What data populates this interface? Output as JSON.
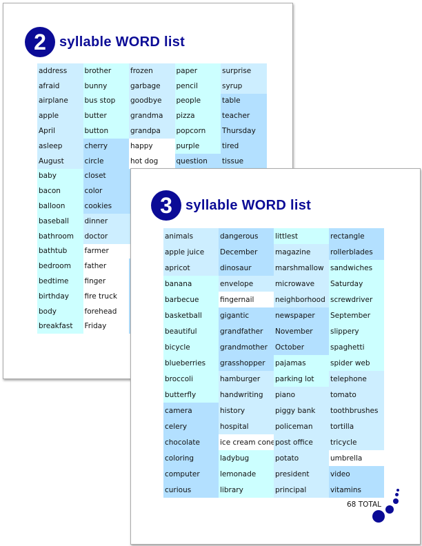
{
  "back_page": {
    "number": "2",
    "title": "syllable WORD list",
    "columns": [
      {
        "words": [
          "address",
          "afraid",
          "airplane",
          "apple",
          "April",
          "asleep",
          "August",
          "baby",
          "bacon",
          "balloon",
          "baseball",
          "bathroom",
          "bathtub",
          "bedroom",
          "bedtime",
          "birthday",
          "body",
          "breakfast"
        ],
        "colors": [
          "l",
          "l",
          "l",
          "l",
          "l",
          "l",
          "l",
          "c",
          "c",
          "c",
          "c",
          "c",
          "c",
          "c",
          "c",
          "c",
          "c",
          "c"
        ]
      },
      {
        "words": [
          "brother",
          "bunny",
          "bus stop",
          "butter",
          "button",
          "cherry",
          "circle",
          "closet",
          "color",
          "cookies",
          "dinner",
          "doctor",
          "farmer",
          "father",
          "finger",
          "fire truck",
          "forehead",
          "Friday"
        ],
        "colors": [
          "c",
          "c",
          "c",
          "c",
          "c",
          "m",
          "m",
          "m",
          "m",
          "m",
          "l",
          "l",
          "w",
          "w",
          "w",
          "w",
          "w",
          "w"
        ]
      },
      {
        "words": [
          "frozen",
          "garbage",
          "goodbye",
          "grandma",
          "grandpa",
          "happy",
          "hot dog",
          "",
          "",
          "",
          "",
          "",
          "",
          "",
          "",
          "",
          "",
          ""
        ],
        "colors": [
          "l",
          "l",
          "l",
          "l",
          "l",
          "w",
          "w",
          "m",
          "m",
          "m",
          "l",
          "l",
          "w",
          "m",
          "m",
          "m",
          "m",
          "m"
        ]
      },
      {
        "words": [
          "paper",
          "pencil",
          "people",
          "pizza",
          "popcorn",
          "purple",
          "question"
        ],
        "colors": [
          "c",
          "c",
          "c",
          "c",
          "c",
          "c",
          "m"
        ]
      },
      {
        "words": [
          "surprise",
          "syrup",
          "table",
          "teacher",
          "Thursday",
          "tired",
          "tissue"
        ],
        "colors": [
          "l",
          "l",
          "m",
          "m",
          "m",
          "m",
          "m"
        ]
      }
    ]
  },
  "front_page": {
    "number": "3",
    "title": "syllable WORD list",
    "total": "68 TOTAL",
    "columns": [
      {
        "words": [
          "animals",
          "apple juice",
          "apricot",
          "banana",
          "barbecue",
          "basketball",
          "beautiful",
          "bicycle",
          "blueberries",
          "broccoli",
          "butterfly",
          "camera",
          "celery",
          "chocolate",
          "coloring",
          "computer",
          "curious"
        ],
        "colors": [
          "l",
          "l",
          "l",
          "c",
          "c",
          "c",
          "c",
          "c",
          "c",
          "c",
          "c",
          "m",
          "m",
          "m",
          "m",
          "m",
          "m"
        ]
      },
      {
        "words": [
          "dangerous",
          "December",
          "dinosaur",
          "envelope",
          "fingernail",
          "gigantic",
          "grandfather",
          "grandmother",
          "grasshopper",
          "hamburger",
          "handwriting",
          "history",
          "hospital",
          "ice cream cone",
          "ladybug",
          "lemonade",
          "library"
        ],
        "colors": [
          "m",
          "m",
          "m",
          "l",
          "w",
          "m",
          "m",
          "m",
          "m",
          "l",
          "l",
          "l",
          "l",
          "w",
          "c",
          "c",
          "c"
        ]
      },
      {
        "words": [
          "littlest",
          "magazine",
          "marshmallow",
          "microwave",
          "neighborhood",
          "newspaper",
          "November",
          "October",
          "pajamas",
          "parking lot",
          "piano",
          "piggy bank",
          "policeman",
          "post office",
          "potato",
          "president",
          "principal"
        ],
        "colors": [
          "c",
          "l",
          "l",
          "l",
          "l",
          "m",
          "m",
          "m",
          "c",
          "c",
          "l",
          "l",
          "l",
          "l",
          "l",
          "l",
          "l"
        ]
      },
      {
        "words": [
          "rectangle",
          "rollerblades",
          "sandwiches",
          "Saturday",
          "screwdriver",
          "September",
          "slippery",
          "spaghetti",
          "spider web",
          "telephone",
          "tomato",
          "toothbrushes",
          "tortilla",
          "tricycle",
          "umbrella",
          "video",
          "vitamins"
        ],
        "colors": [
          "m",
          "m",
          "c",
          "c",
          "c",
          "c",
          "c",
          "c",
          "c",
          "l",
          "l",
          "l",
          "l",
          "l",
          "w",
          "m",
          "m"
        ]
      }
    ]
  },
  "palette": {
    "light": "#cdeeff",
    "cyan": "#ccffff",
    "mid": "#b3e0ff",
    "white": "#ffffff",
    "accent": "#0b0b96"
  }
}
